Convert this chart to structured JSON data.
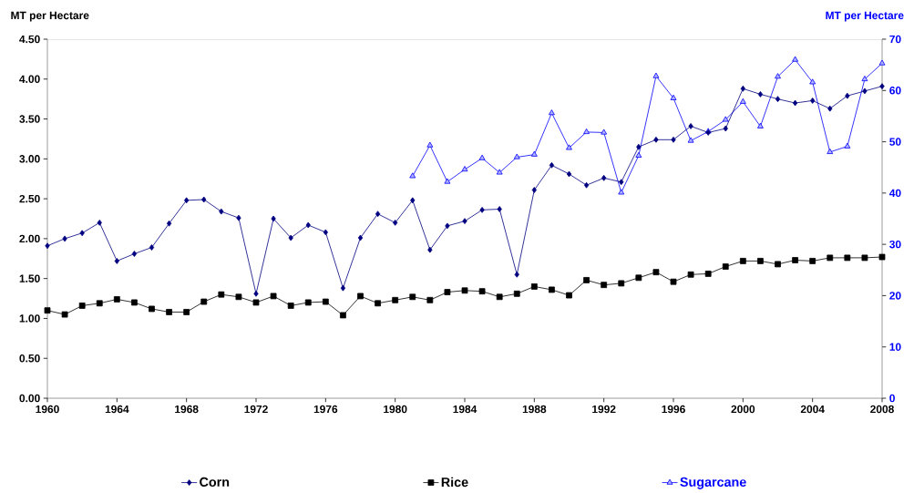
{
  "chart_data": {
    "type": "line",
    "x": [
      1960,
      1961,
      1962,
      1963,
      1964,
      1965,
      1966,
      1967,
      1968,
      1969,
      1970,
      1971,
      1972,
      1973,
      1974,
      1975,
      1976,
      1977,
      1978,
      1979,
      1980,
      1981,
      1982,
      1983,
      1984,
      1985,
      1986,
      1987,
      1988,
      1989,
      1990,
      1991,
      1992,
      1993,
      1994,
      1995,
      1996,
      1997,
      1998,
      1999,
      2000,
      2001,
      2002,
      2003,
      2004,
      2005,
      2006,
      2007,
      2008
    ],
    "series": [
      {
        "name": "Corn",
        "color": "#000080",
        "marker": "diamond",
        "values": [
          1.91,
          2.0,
          2.07,
          2.2,
          1.72,
          1.81,
          1.89,
          2.19,
          2.48,
          2.49,
          2.34,
          2.26,
          1.31,
          2.25,
          2.01,
          2.17,
          2.08,
          1.38,
          2.01,
          2.31,
          2.2,
          2.48,
          1.86,
          2.16,
          2.22,
          2.36,
          2.37,
          1.55,
          2.61,
          2.92,
          2.81,
          2.67,
          2.76,
          2.71,
          3.15,
          3.24,
          3.24,
          3.41,
          3.33,
          3.38,
          3.88,
          3.81,
          3.75,
          3.7,
          3.73,
          3.63,
          3.79,
          3.85,
          3.91
        ]
      },
      {
        "name": "Rice",
        "color": "#000000",
        "marker": "square",
        "values": [
          1.1,
          1.05,
          1.16,
          1.19,
          1.24,
          1.2,
          1.12,
          1.08,
          1.08,
          1.21,
          1.3,
          1.27,
          1.2,
          1.28,
          1.16,
          1.2,
          1.21,
          1.04,
          1.28,
          1.19,
          1.23,
          1.27,
          1.23,
          1.33,
          1.35,
          1.34,
          1.27,
          1.31,
          1.4,
          1.36,
          1.29,
          1.48,
          1.42,
          1.44,
          1.51,
          1.58,
          1.46,
          1.55,
          1.56,
          1.65,
          1.72,
          1.72,
          1.68,
          1.73,
          1.72,
          1.76,
          1.76,
          1.76,
          1.77
        ]
      },
      {
        "name": "Sugarcane",
        "color": "#0000ff",
        "marker": "triangle",
        "axis": "y2",
        "x": [
          1981,
          1982,
          1983,
          1984,
          1985,
          1986,
          1987,
          1988,
          1989,
          1990,
          1991,
          1992,
          1993,
          1994,
          1995,
          1996,
          1997,
          1998,
          1999,
          2000,
          2001,
          2002,
          2003,
          2004,
          2005,
          2006,
          2007,
          2008
        ],
        "values": [
          43.3,
          49.3,
          42.2,
          44.6,
          46.8,
          44.0,
          47.0,
          47.5,
          55.6,
          48.8,
          51.9,
          51.8,
          40.1,
          47.3,
          62.8,
          58.5,
          50.2,
          52.0,
          54.3,
          57.8,
          53.0,
          62.7,
          66.0,
          61.6,
          48.0,
          49.1,
          62.2,
          65.3
        ]
      }
    ],
    "ylabel": "MT per Hectare",
    "y2label": "MT per Hectare",
    "xlim": [
      1960,
      2008
    ],
    "xticks": [
      1960,
      1964,
      1968,
      1972,
      1976,
      1980,
      1984,
      1988,
      1992,
      1996,
      2000,
      2004,
      2008
    ],
    "ylim": [
      0,
      4.5
    ],
    "yticks": [
      {
        "value": 0,
        "label": "0.00"
      },
      {
        "value": 0.5,
        "label": "0.50"
      },
      {
        "value": 1,
        "label": "1.00"
      },
      {
        "value": 1.5,
        "label": "1.50"
      },
      {
        "value": 2,
        "label": "2.00"
      },
      {
        "value": 2.5,
        "label": "2.50"
      },
      {
        "value": 3,
        "label": "3.00"
      },
      {
        "value": 3.5,
        "label": "3.50"
      },
      {
        "value": 4,
        "label": "4.00"
      },
      {
        "value": 4.5,
        "label": "4.50"
      }
    ],
    "y2lim": [
      0,
      70
    ],
    "y2ticks": [
      0,
      10,
      20,
      30,
      40,
      50,
      60,
      70
    ],
    "grid": false,
    "legend": "bottom",
    "line_style": "solid"
  }
}
